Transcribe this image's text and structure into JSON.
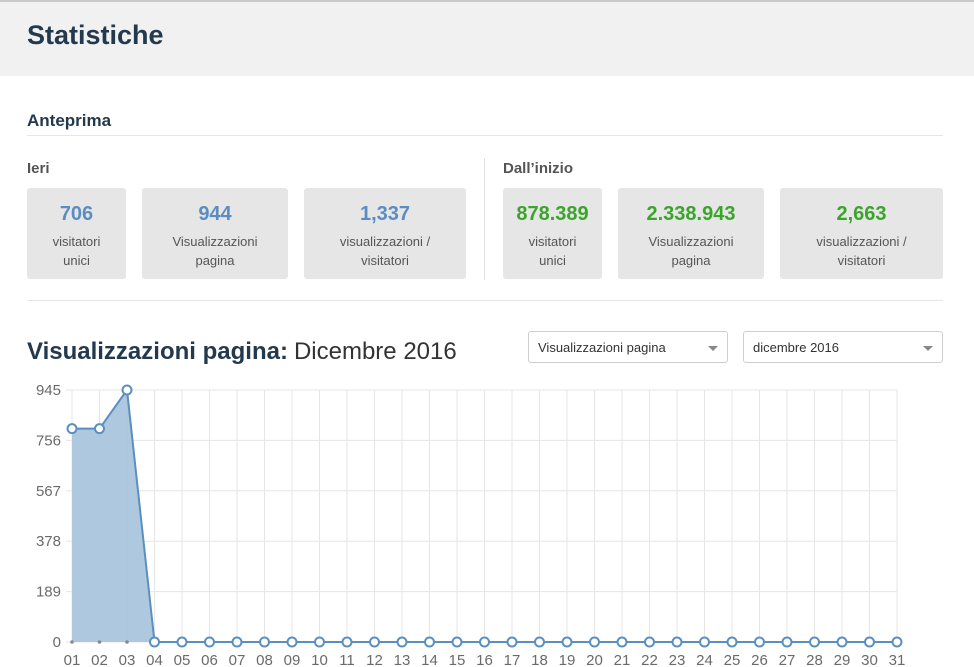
{
  "page": {
    "title": "Statistiche"
  },
  "overview": {
    "title": "Anteprima",
    "yesterday": {
      "label": "Ieri",
      "cards": [
        {
          "value": "706",
          "label": "visitatori unici"
        },
        {
          "value": "944",
          "label": "Visualizzazioni pagina"
        },
        {
          "value": "1,337",
          "label": "visualizzazioni / visitatori"
        }
      ]
    },
    "since_start": {
      "label": "Dall’inizio",
      "cards": [
        {
          "value": "878.389",
          "label": "visitatori unici"
        },
        {
          "value": "2.338.943",
          "label": "Visualizzazioni pagina"
        },
        {
          "value": "2,663",
          "label": "visualizzazioni / visitatori"
        }
      ]
    },
    "colors": {
      "yesterday_value": "#5b8cc2",
      "since_start_value": "#3aa52a"
    }
  },
  "chart_section": {
    "title": "Visualizzazioni pagina:",
    "period": "Dicembre 2016",
    "metric_select": {
      "value": "Visualizzazioni pagina"
    },
    "month_select": {
      "value": "dicembre 2016"
    }
  },
  "chart_data": {
    "type": "area",
    "x": [
      "01",
      "02",
      "03",
      "04",
      "05",
      "06",
      "07",
      "08",
      "09",
      "10",
      "11",
      "12",
      "13",
      "14",
      "15",
      "16",
      "17",
      "18",
      "19",
      "20",
      "21",
      "22",
      "23",
      "24",
      "25",
      "26",
      "27",
      "28",
      "29",
      "30",
      "31"
    ],
    "series": [
      {
        "values": [
          800,
          800,
          945,
          0,
          0,
          0,
          0,
          0,
          0,
          0,
          0,
          0,
          0,
          0,
          0,
          0,
          0,
          0,
          0,
          0,
          0,
          0,
          0,
          0,
          0,
          0,
          0,
          0,
          0,
          0,
          0
        ]
      }
    ],
    "yticks": [
      "945",
      "756",
      "567",
      "378",
      "189",
      "0"
    ],
    "ylim": [
      0,
      945
    ],
    "grid": true,
    "colors": {
      "line": "#5b8fbf",
      "fill": "#a9c5dd",
      "grid": "#e6e6e6"
    }
  }
}
